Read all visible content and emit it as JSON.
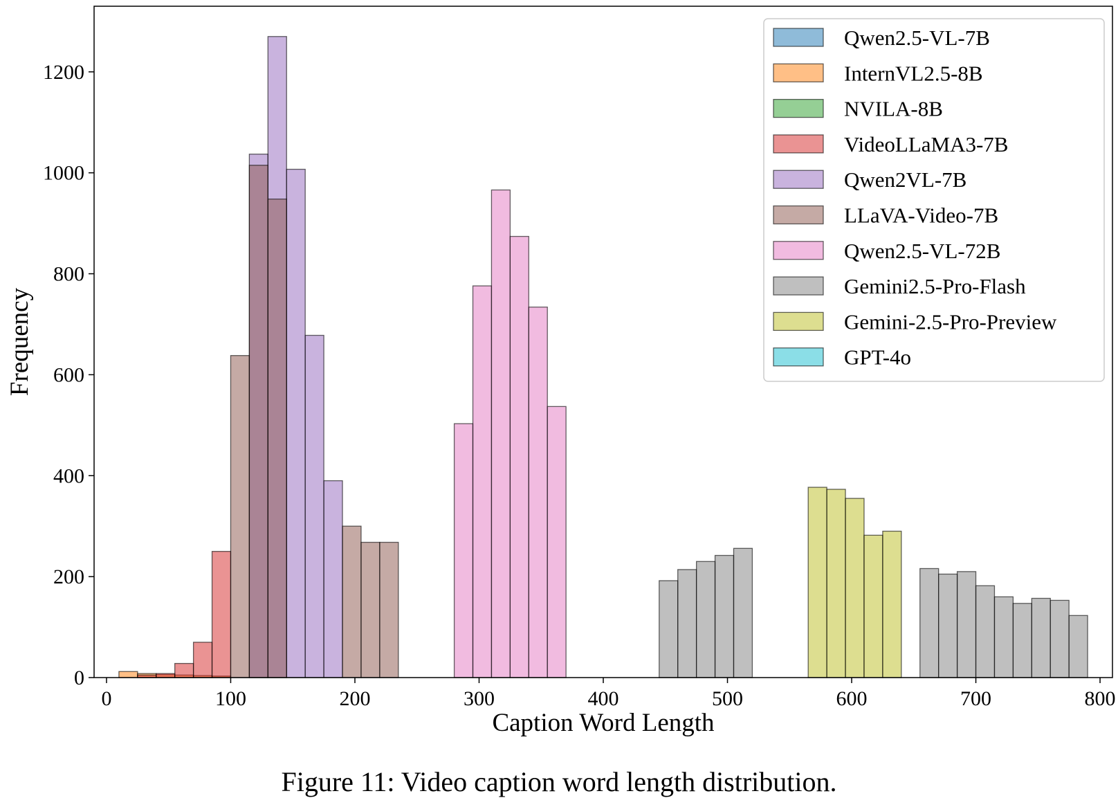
{
  "caption": "Figure 11: Video caption word length distribution.",
  "chart_data": {
    "type": "bar",
    "subtype": "overlaid-histogram",
    "xlabel": "Caption Word Length",
    "ylabel": "Frequency",
    "xlim": [
      -10,
      810
    ],
    "ylim": [
      0,
      1330
    ],
    "xticks": [
      0,
      100,
      200,
      300,
      400,
      500,
      600,
      700,
      800
    ],
    "yticks": [
      0,
      200,
      400,
      600,
      800,
      1000,
      1200
    ],
    "grid": false,
    "legend_position": "upper right",
    "bin_width": 15,
    "bins": [
      10,
      25,
      40,
      55,
      70,
      85,
      100,
      115,
      130,
      145,
      160,
      175,
      190,
      205,
      220,
      235,
      250,
      265,
      280,
      295,
      310,
      325,
      340,
      355,
      370,
      385,
      400,
      415,
      430,
      445,
      460,
      475,
      490,
      505,
      520,
      535,
      550,
      565,
      580,
      595,
      610,
      625,
      640,
      655,
      670,
      685,
      700,
      715,
      730,
      745,
      760,
      775
    ],
    "series": [
      {
        "name": "Qwen2.5-VL-7B",
        "color": "#1f77b4",
        "values": [
          0,
          0,
          0,
          0,
          0,
          0,
          0,
          0,
          0,
          0,
          0,
          0,
          0,
          0,
          0,
          0,
          0,
          0,
          0,
          0,
          0,
          0,
          0,
          0,
          0,
          0,
          0,
          0,
          0,
          0,
          0,
          0,
          0,
          0,
          0,
          0,
          0,
          0,
          0,
          0,
          0,
          0,
          0,
          0,
          0,
          0,
          0,
          0,
          0,
          0,
          0,
          0
        ]
      },
      {
        "name": "InternVL2.5-8B",
        "color": "#ff7f0e",
        "values": [
          12,
          8,
          6,
          5,
          4,
          3,
          0,
          0,
          0,
          0,
          0,
          0,
          0,
          0,
          0,
          0,
          0,
          0,
          0,
          0,
          0,
          0,
          0,
          0,
          0,
          0,
          0,
          0,
          0,
          0,
          0,
          0,
          0,
          0,
          0,
          0,
          0,
          0,
          0,
          0,
          0,
          0,
          0,
          0,
          0,
          0,
          0,
          0,
          0,
          0,
          0,
          0
        ]
      },
      {
        "name": "NVILA-8B",
        "color": "#2ca02c",
        "values": [
          0,
          0,
          0,
          0,
          0,
          0,
          0,
          0,
          0,
          0,
          0,
          0,
          0,
          0,
          0,
          0,
          0,
          0,
          0,
          0,
          0,
          0,
          0,
          0,
          0,
          0,
          0,
          0,
          0,
          0,
          0,
          0,
          0,
          0,
          0,
          0,
          0,
          0,
          0,
          0,
          0,
          0,
          0,
          0,
          0,
          0,
          0,
          0,
          0,
          0,
          0,
          0
        ]
      },
      {
        "name": "VideoLLaMA3-7B",
        "color": "#d62728",
        "values": [
          0,
          5,
          8,
          28,
          70,
          250,
          0,
          0,
          0,
          0,
          0,
          0,
          0,
          0,
          0,
          0,
          0,
          0,
          0,
          0,
          0,
          0,
          0,
          0,
          0,
          0,
          0,
          0,
          0,
          0,
          0,
          0,
          0,
          0,
          0,
          0,
          0,
          0,
          0,
          0,
          0,
          0,
          0,
          0,
          0,
          0,
          0,
          0,
          0,
          0,
          0,
          0
        ]
      },
      {
        "name": "Qwen2VL-7B",
        "color": "#9467bd",
        "values": [
          0,
          0,
          0,
          0,
          0,
          0,
          0,
          1037,
          1270,
          1007,
          678,
          390,
          0,
          0,
          0,
          0,
          0,
          0,
          0,
          0,
          0,
          0,
          0,
          0,
          0,
          0,
          0,
          0,
          0,
          0,
          0,
          0,
          0,
          0,
          0,
          0,
          0,
          0,
          0,
          0,
          0,
          0,
          0,
          0,
          0,
          0,
          0,
          0,
          0,
          0,
          0,
          0
        ]
      },
      {
        "name": "LLaVA-Video-7B",
        "color": "#8c564b",
        "values": [
          0,
          0,
          0,
          0,
          0,
          0,
          638,
          1015,
          948,
          0,
          0,
          0,
          300,
          268,
          268,
          0,
          0,
          0,
          0,
          0,
          0,
          0,
          0,
          0,
          0,
          0,
          0,
          0,
          0,
          0,
          0,
          0,
          0,
          0,
          0,
          0,
          0,
          0,
          0,
          0,
          0,
          0,
          0,
          0,
          0,
          0,
          0,
          0,
          0,
          0,
          0,
          0
        ]
      },
      {
        "name": "Qwen2.5-VL-72B",
        "color": "#e377c2",
        "values": [
          0,
          0,
          0,
          0,
          0,
          0,
          0,
          0,
          0,
          0,
          0,
          0,
          0,
          0,
          0,
          0,
          0,
          0,
          503,
          776,
          966,
          874,
          734,
          537,
          0,
          0,
          0,
          0,
          0,
          0,
          0,
          0,
          0,
          0,
          0,
          0,
          0,
          0,
          0,
          0,
          0,
          0,
          0,
          0,
          0,
          0,
          0,
          0,
          0,
          0,
          0,
          0
        ]
      },
      {
        "name": "Gemini2.5-Pro-Flash",
        "color": "#7f7f7f",
        "values": [
          0,
          0,
          0,
          0,
          0,
          0,
          0,
          0,
          0,
          0,
          0,
          0,
          0,
          0,
          0,
          0,
          0,
          0,
          0,
          0,
          0,
          0,
          0,
          0,
          0,
          0,
          0,
          0,
          0,
          192,
          214,
          230,
          242,
          256,
          0,
          0,
          0,
          0,
          0,
          0,
          0,
          0,
          0,
          216,
          205,
          210,
          182,
          160,
          147,
          157,
          153,
          123
        ]
      },
      {
        "name": "Gemini-2.5-Pro-Preview",
        "color": "#bcbd22",
        "values": [
          0,
          0,
          0,
          0,
          0,
          0,
          0,
          0,
          0,
          0,
          0,
          0,
          0,
          0,
          0,
          0,
          0,
          0,
          0,
          0,
          0,
          0,
          0,
          0,
          0,
          0,
          0,
          0,
          0,
          0,
          0,
          0,
          0,
          0,
          0,
          0,
          0,
          377,
          373,
          355,
          282,
          290,
          0,
          0,
          0,
          0,
          0,
          0,
          0,
          0,
          0,
          0
        ]
      },
      {
        "name": "GPT-4o",
        "color": "#17becf",
        "values": [
          0,
          0,
          0,
          0,
          0,
          0,
          0,
          0,
          0,
          0,
          0,
          0,
          0,
          0,
          0,
          0,
          0,
          0,
          0,
          0,
          0,
          0,
          0,
          0,
          0,
          0,
          0,
          0,
          0,
          0,
          0,
          0,
          0,
          0,
          0,
          0,
          0,
          0,
          0,
          0,
          0,
          0,
          0,
          0,
          0,
          0,
          0,
          0,
          0,
          0,
          0,
          0
        ]
      }
    ]
  }
}
